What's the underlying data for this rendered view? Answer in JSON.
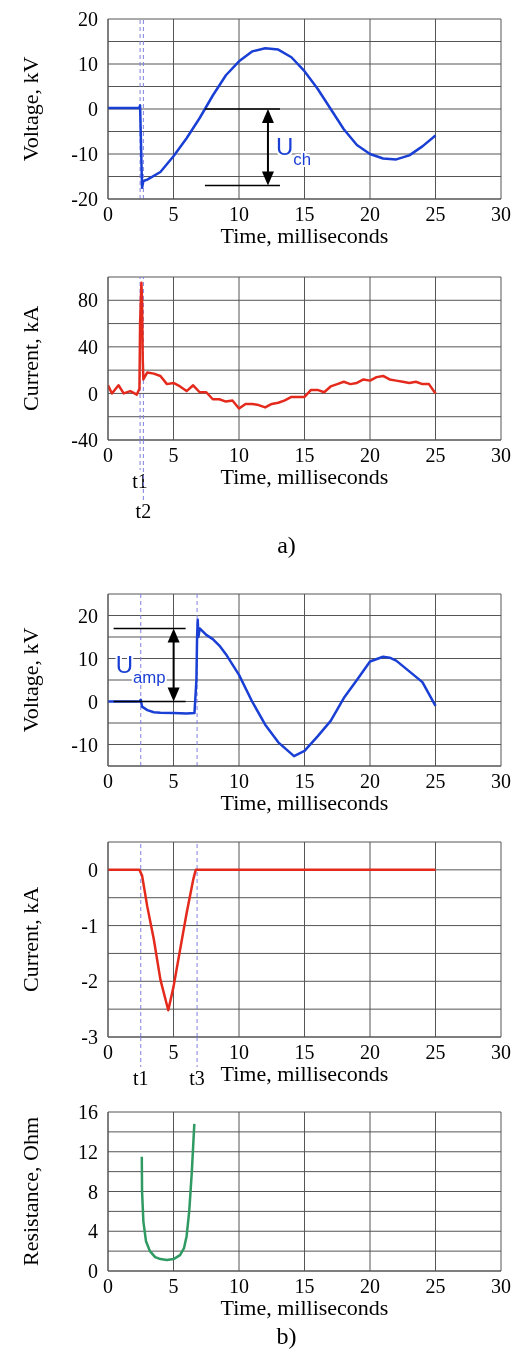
{
  "chart_data": [
    {
      "type": "line",
      "xlabel": "Time, milliseconds",
      "ylabel": "Voltage, kV",
      "xlim": [
        0,
        30
      ],
      "xticks": [
        0,
        5,
        10,
        15,
        20,
        25,
        30
      ],
      "ylim": [
        -20,
        20
      ],
      "yticks": [
        -20,
        {
          "value": -15,
          "label": null
        },
        -10,
        {
          "value": -5,
          "label": null
        },
        0,
        {
          "value": 5,
          "label": null
        },
        10,
        {
          "value": 15,
          "label": null
        },
        20
      ],
      "grid": true,
      "x": [
        0,
        2.4,
        2.45,
        2.6,
        2.7,
        3,
        4,
        5,
        6,
        7,
        8,
        9,
        10,
        11,
        12,
        13,
        14,
        15,
        16,
        17,
        18,
        19,
        20,
        21,
        22,
        23,
        24,
        25
      ],
      "series": [
        {
          "color": "#1a3fd4",
          "values": [
            0.2,
            0.3,
            0.8,
            -17.5,
            -16,
            -15.7,
            -14,
            -10.5,
            -6.5,
            -2,
            3,
            7.5,
            10.6,
            12.8,
            13.5,
            13.2,
            11.5,
            8.4,
            4.5,
            0,
            -4.5,
            -8,
            -10,
            -11,
            -11.2,
            -10.3,
            -8.3,
            -5.9
          ]
        }
      ],
      "ref_lines": [
        {
          "axis": "x",
          "value": 2.45,
          "color": "#8080e0",
          "line_style": "dashed"
        },
        {
          "axis": "x",
          "value": 2.7,
          "color": "#8080e0",
          "line_style": "dashed"
        }
      ],
      "annotations": [
        {
          "text": "U$_{ch}$",
          "x": 7.4,
          "y": 0
        }
      ]
    },
    {
      "type": "line",
      "xlabel": "Time, milliseconds",
      "ylabel": "Current, kA",
      "xlim": [
        0,
        30
      ],
      "xticks": [
        0,
        5,
        10,
        15,
        20,
        25,
        30
      ],
      "ylim": [
        -40,
        100
      ],
      "yticks": [
        -40,
        {
          "value": -20,
          "label": null
        },
        0,
        {
          "value": 20,
          "label": null
        },
        40,
        {
          "value": 60,
          "label": null
        },
        80,
        {
          "value": 100,
          "label": null
        }
      ],
      "grid": true,
      "x": [
        0,
        0.3,
        0.8,
        1.2,
        1.7,
        2.2,
        2.4,
        2.45,
        2.55,
        2.6,
        2.65,
        2.7,
        3,
        3.5,
        4,
        4.5,
        5,
        5.5,
        6,
        6.5,
        7,
        7.5,
        8,
        8.5,
        9,
        9.5,
        10,
        10.5,
        11,
        11.5,
        12,
        12.5,
        13,
        13.5,
        14,
        14.5,
        15,
        15.5,
        16,
        16.5,
        17,
        17.5,
        18,
        18.5,
        19,
        19.5,
        20,
        20.5,
        21,
        21.5,
        22,
        22.5,
        23,
        23.5,
        24,
        24.5,
        25
      ],
      "series": [
        {
          "color": "#e42a1d",
          "values": [
            7,
            0,
            7,
            0,
            2,
            -1,
            4,
            60,
            95,
            80,
            30,
            12,
            18,
            17,
            15,
            8,
            9,
            6,
            2,
            7,
            1,
            1,
            -5,
            -5,
            -7,
            -6,
            -13,
            -9,
            -9,
            -10,
            -12,
            -9,
            -8,
            -6,
            -3,
            -3,
            -3,
            3,
            3,
            1,
            6,
            8,
            10,
            8,
            9,
            12,
            11,
            14,
            15,
            12,
            11,
            10,
            9,
            10,
            8,
            8,
            0
          ]
        }
      ],
      "ref_lines": [
        {
          "axis": "x",
          "value": 2.45,
          "label": "t1",
          "color": "#8080e0",
          "line_style": "dashed"
        },
        {
          "axis": "x",
          "value": 2.7,
          "label": "t2",
          "color": "#8080e0",
          "line_style": "dashed"
        }
      ],
      "annotations": [
        "a)"
      ]
    },
    {
      "type": "line",
      "xlabel": "Time, milliseconds",
      "ylabel": "Voltage, kV",
      "xlim": [
        0,
        30
      ],
      "xticks": [
        0,
        5,
        10,
        15,
        20,
        25,
        30
      ],
      "ylim": [
        -15,
        25
      ],
      "yticks": [
        {
          "value": -15,
          "label": null
        },
        -10,
        {
          "value": -5,
          "label": null
        },
        0,
        {
          "value": 5,
          "label": null
        },
        10,
        {
          "value": 15,
          "label": null
        },
        20,
        {
          "value": 25,
          "label": null
        }
      ],
      "grid": true,
      "x": [
        0,
        2.4,
        2.5,
        2.6,
        3,
        3.5,
        4,
        5,
        6,
        6.6,
        6.75,
        6.8,
        6.85,
        6.9,
        7,
        7.5,
        8,
        8.5,
        9,
        10,
        11,
        12,
        13,
        14.2,
        15,
        16,
        17,
        18,
        19,
        20,
        21,
        21.5,
        22,
        23,
        24,
        25
      ],
      "series": [
        {
          "color": "#1a3fd4",
          "values": [
            0,
            0,
            0.4,
            -1.2,
            -2,
            -2.5,
            -2.6,
            -2.7,
            -2.8,
            -2.7,
            5,
            15,
            19,
            15,
            17,
            15.5,
            14.5,
            13,
            11,
            6.2,
            0,
            -5.4,
            -9.5,
            -12.7,
            -11.5,
            -8.1,
            -4.5,
            0.8,
            5,
            9.3,
            10.4,
            10.2,
            9.5,
            7,
            4.5,
            -1
          ]
        }
      ],
      "ref_lines": [
        {
          "axis": "x",
          "value": 2.5,
          "color": "#8080e0",
          "line_style": "dashed"
        },
        {
          "axis": "x",
          "value": 6.8,
          "color": "#8080e0",
          "line_style": "dashed"
        }
      ],
      "annotations": [
        "U$_{amp}$"
      ]
    },
    {
      "type": "line",
      "xlabel": "Time, milliseconds",
      "ylabel": "Current, kA",
      "xlim": [
        0,
        30
      ],
      "xticks": [
        0,
        5,
        10,
        15,
        20,
        25,
        30
      ],
      "ylim": [
        -3,
        0.5
      ],
      "yticks": [
        -3,
        {
          "value": -2.5,
          "label": null
        },
        -2,
        {
          "value": -1.5,
          "label": null
        },
        -1,
        {
          "value": -0.5,
          "label": null
        },
        0,
        {
          "value": 0.5,
          "label": null
        }
      ],
      "grid": true,
      "x": [
        0,
        2.4,
        2.6,
        3,
        3.5,
        4,
        4.6,
        5,
        5.5,
        6,
        6.5,
        6.7,
        10,
        15,
        20,
        25
      ],
      "series": [
        {
          "color": "#e42a1d",
          "values": [
            0,
            0,
            -0.1,
            -0.66,
            -1.25,
            -1.97,
            -2.52,
            -2.1,
            -1.44,
            -0.78,
            -0.18,
            0,
            0,
            0,
            0,
            0
          ]
        }
      ],
      "ref_lines": [
        {
          "axis": "x",
          "value": 2.5,
          "label": "t1",
          "color": "#8080e0",
          "line_style": "dashed"
        },
        {
          "axis": "x",
          "value": 6.8,
          "label": "t3",
          "color": "#8080e0",
          "line_style": "dashed"
        }
      ]
    },
    {
      "type": "line",
      "xlabel": "Time, milliseconds",
      "ylabel": "Resistance, Ohm",
      "xlim": [
        0,
        30
      ],
      "xticks": [
        0,
        5,
        10,
        15,
        20,
        25,
        30
      ],
      "ylim": [
        0,
        16
      ],
      "yticks": [
        0,
        {
          "value": 2,
          "label": null
        },
        4,
        {
          "value": 6,
          "label": null
        },
        8,
        {
          "value": 10,
          "label": null
        },
        12,
        {
          "value": 14,
          "label": null
        },
        16
      ],
      "grid": true,
      "x": [
        2.58,
        2.6,
        2.7,
        2.9,
        3.2,
        3.6,
        4,
        4.5,
        5,
        5.5,
        5.8,
        6,
        6.2,
        6.4,
        6.59
      ],
      "series": [
        {
          "color": "#2f9a62",
          "values": [
            11.5,
            8,
            5,
            3,
            2,
            1.4,
            1.2,
            1.1,
            1.2,
            1.6,
            2.3,
            3.5,
            6,
            10,
            14.8
          ]
        }
      ],
      "annotations": [
        "b)"
      ]
    }
  ]
}
